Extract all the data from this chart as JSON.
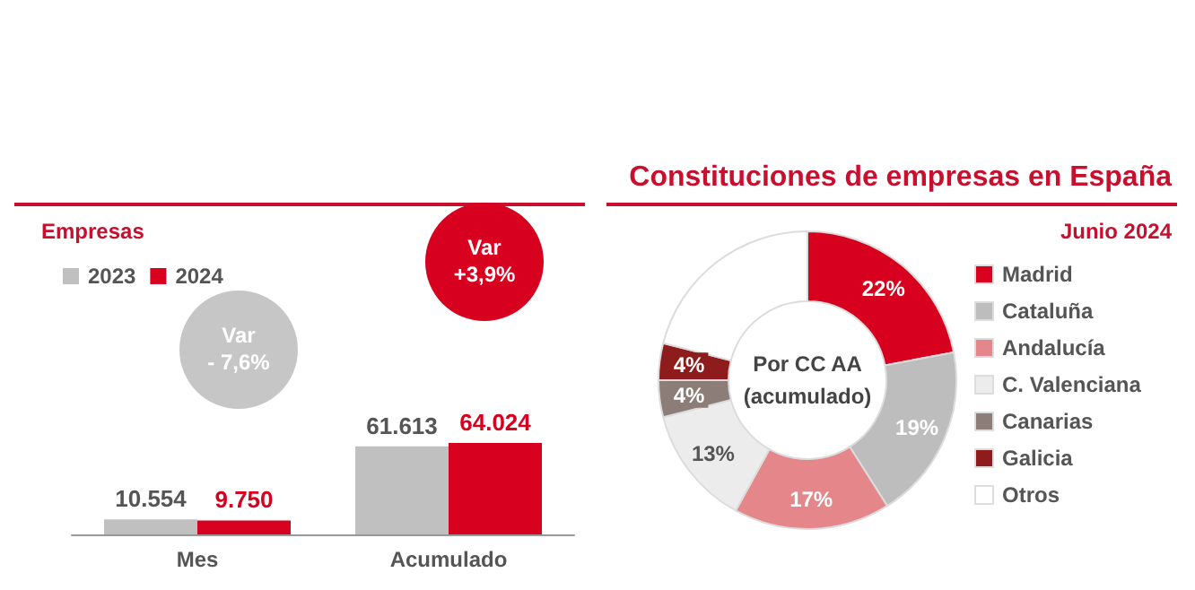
{
  "chart_data": [
    {
      "type": "bar",
      "title": "Empresas",
      "categories": [
        "Mes",
        "Acumulado"
      ],
      "series": [
        {
          "name": "2023",
          "color": "#c0c0c0",
          "values": [
            10554,
            61613
          ],
          "value_labels": [
            "10.554",
            "61.613"
          ]
        },
        {
          "name": "2024",
          "color": "#d7001e",
          "values": [
            9750,
            64024
          ],
          "value_labels": [
            "9.750",
            "64.024"
          ]
        }
      ],
      "legend": "top left",
      "annotations": [
        "Var\n- 7,6%",
        "Var\n+3,9%"
      ]
    },
    {
      "type": "donut",
      "title": "Constituciones de empresas en España",
      "subtitle": "Junio 2024",
      "categories": [
        "Madrid",
        "Cataluña",
        "Andalucía",
        "C. Valenciana",
        "Canarias",
        "Galicia",
        "Otros"
      ],
      "values": [
        22,
        19,
        17,
        13,
        4,
        4,
        21
      ],
      "value_labels": [
        "22%",
        "19%",
        "17%",
        "13%",
        "4%",
        "4%",
        null
      ],
      "colors": [
        "#d7001e",
        "#bdbdbd",
        "#e5868a",
        "#ececec",
        "#8c7d78",
        "#8e1c1c",
        "#ffffff"
      ],
      "legend": "right",
      "annotations": [
        "Por CC AA\n(acumulado)"
      ]
    }
  ]
}
